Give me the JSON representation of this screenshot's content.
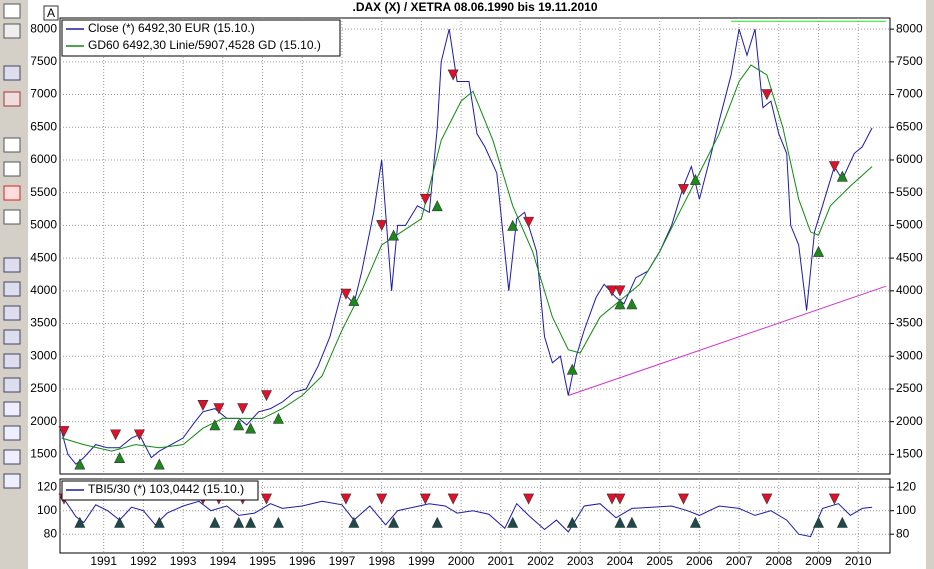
{
  "ui": {
    "corner_label": "A"
  },
  "chart_data": [
    {
      "type": "line",
      "title": ".DAX (X) / XETRA 08.06.1990 bis 19.11.2010",
      "xlim": [
        1990.4,
        2011.3
      ],
      "ylim": [
        1200,
        8170
      ],
      "yticks": [
        1500,
        2000,
        2500,
        3000,
        3500,
        4000,
        4500,
        5000,
        5500,
        6000,
        6500,
        7000,
        7500,
        8000
      ],
      "grid": true,
      "series": [
        {
          "name": "Close (*) 6492,30 EUR (15.10.)",
          "color": "#1c1ca8",
          "x": [
            1990.44,
            1990.6,
            1990.8,
            1991.0,
            1991.3,
            1991.6,
            1991.9,
            1992.2,
            1992.4,
            1992.7,
            1992.9,
            1993.2,
            1993.5,
            1993.8,
            1994.0,
            1994.3,
            1994.6,
            1994.9,
            1995.1,
            1995.4,
            1995.7,
            1996.0,
            1996.3,
            1996.6,
            1996.9,
            1997.2,
            1997.5,
            1997.8,
            1998.0,
            1998.3,
            1998.5,
            1998.6,
            1998.75,
            1998.9,
            1999.1,
            1999.4,
            1999.7,
            1999.9,
            2000.0,
            2000.2,
            2000.4,
            2000.7,
            2000.9,
            2001.1,
            2001.4,
            2001.7,
            2001.9,
            2002.1,
            2002.4,
            2002.6,
            2002.8,
            2003.0,
            2003.2,
            2003.4,
            2003.6,
            2003.9,
            2004.1,
            2004.4,
            2004.6,
            2004.9,
            2005.2,
            2005.5,
            2005.8,
            2006.1,
            2006.3,
            2006.5,
            2006.8,
            2007.0,
            2007.3,
            2007.5,
            2007.7,
            2007.9,
            2008.1,
            2008.3,
            2008.5,
            2008.7,
            2008.8,
            2009.0,
            2009.2,
            2009.4,
            2009.6,
            2009.9,
            2010.1,
            2010.4,
            2010.6,
            2010.85
          ],
          "values": [
            1850,
            1500,
            1350,
            1450,
            1650,
            1600,
            1600,
            1750,
            1800,
            1450,
            1550,
            1650,
            1750,
            2000,
            2150,
            2200,
            2050,
            2050,
            1950,
            2150,
            2200,
            2300,
            2450,
            2500,
            2850,
            3300,
            4000,
            3800,
            4300,
            5200,
            6000,
            5200,
            4000,
            5000,
            5000,
            5300,
            5200,
            6500,
            7500,
            8000,
            7200,
            7200,
            6400,
            6200,
            5800,
            4000,
            5100,
            5200,
            4600,
            3300,
            2900,
            3000,
            2400,
            3000,
            3400,
            3900,
            4100,
            3900,
            3800,
            4200,
            4300,
            4600,
            5000,
            5600,
            5900,
            5400,
            6100,
            6600,
            7300,
            8000,
            7600,
            8000,
            6800,
            6900,
            6400,
            6100,
            5000,
            4700,
            3700,
            4900,
            5300,
            5900,
            5700,
            6100,
            6200,
            6490
          ]
        },
        {
          "name": "GD60 6492,30 Linie/5907,4528 GD (15.10.)",
          "color": "#108a10",
          "x": [
            1990.44,
            1991.0,
            1991.7,
            1992.3,
            1992.9,
            1993.5,
            1994.0,
            1994.5,
            1995.0,
            1995.5,
            1996.0,
            1996.5,
            1997.0,
            1997.5,
            1998.0,
            1998.5,
            1999.0,
            1999.5,
            2000.0,
            2000.5,
            2000.8,
            2001.3,
            2001.8,
            2002.3,
            2002.8,
            2003.2,
            2003.5,
            2004.0,
            2004.5,
            2005.0,
            2005.5,
            2006.0,
            2006.5,
            2007.0,
            2007.5,
            2007.8,
            2008.2,
            2008.6,
            2009.0,
            2009.3,
            2009.5,
            2009.8,
            2010.3,
            2010.85
          ],
          "values": [
            1750,
            1650,
            1550,
            1650,
            1600,
            1650,
            1900,
            2050,
            2050,
            2050,
            2200,
            2400,
            2700,
            3400,
            4000,
            4700,
            4900,
            5100,
            6300,
            6900,
            7050,
            6300,
            5300,
            4600,
            3600,
            3100,
            3050,
            3600,
            3850,
            4100,
            4600,
            5200,
            5800,
            6400,
            7200,
            7450,
            7300,
            6500,
            5400,
            4900,
            4850,
            5300,
            5600,
            5900
          ]
        },
        {
          "color": "#22e022",
          "x": [
            2007.3,
            2011.2
          ],
          "values": [
            8120,
            8120
          ]
        },
        {
          "color": "#cc33cc",
          "x": [
            2003.2,
            2011.2
          ],
          "values": [
            2400,
            4070
          ]
        },
        {
          "color": "#e0102a",
          "marker": "triangle-down",
          "x": [
            1990.5,
            1991.8,
            1992.4,
            1994.0,
            1994.4,
            1995.0,
            1995.6,
            1997.6,
            1998.5,
            1999.6,
            2000.3,
            2002.2,
            2004.3,
            2004.5,
            2006.1,
            2008.2,
            2009.9
          ],
          "values": [
            1850,
            1800,
            1800,
            2250,
            2200,
            2200,
            2400,
            3950,
            5000,
            5400,
            7300,
            5050,
            4000,
            4000,
            5550,
            7000,
            5900
          ]
        },
        {
          "color": "#1a8a1a",
          "marker": "triangle-up",
          "x": [
            1990.9,
            1991.9,
            1992.9,
            1994.3,
            1994.9,
            1995.2,
            1995.9,
            1997.8,
            1998.8,
            1999.9,
            2001.8,
            2003.3,
            2004.5,
            2004.8,
            2006.4,
            2009.5,
            2010.1
          ],
          "values": [
            1350,
            1450,
            1350,
            1950,
            1950,
            1900,
            2050,
            3850,
            4850,
            5300,
            5000,
            2800,
            3800,
            3800,
            5700,
            4600,
            5750
          ]
        }
      ]
    },
    {
      "type": "line",
      "xlim": [
        1990.4,
        2011.3
      ],
      "ylim": [
        64,
        127
      ],
      "yticks": [
        80,
        100,
        120
      ],
      "grid": true,
      "xticks": [
        {
          "value": 1991.5,
          "label": "1991"
        },
        {
          "value": 1992.5,
          "label": "1992"
        },
        {
          "value": 1993.5,
          "label": "1993"
        },
        {
          "value": 1994.5,
          "label": "1994"
        },
        {
          "value": 1995.5,
          "label": "1995"
        },
        {
          "value": 1996.5,
          "label": "1996"
        },
        {
          "value": 1997.5,
          "label": "1997"
        },
        {
          "value": 1998.5,
          "label": "1998"
        },
        {
          "value": 1999.5,
          "label": "1999"
        },
        {
          "value": 2000.5,
          "label": "2000"
        },
        {
          "value": 2001.5,
          "label": "2001"
        },
        {
          "value": 2002.5,
          "label": "2002"
        },
        {
          "value": 2003.5,
          "label": "2003"
        },
        {
          "value": 2004.5,
          "label": "2004"
        },
        {
          "value": 2005.5,
          "label": "2005"
        },
        {
          "value": 2006.5,
          "label": "2006"
        },
        {
          "value": 2007.5,
          "label": "2007"
        },
        {
          "value": 2008.5,
          "label": "2008"
        },
        {
          "value": 2009.5,
          "label": "2009"
        },
        {
          "value": 2010.5,
          "label": "2010"
        }
      ],
      "series": [
        {
          "name": "TBI5/30 (*) 103,0442 (15.10.)",
          "color": "#1c1ca8",
          "x": [
            1990.5,
            1990.8,
            1991.0,
            1991.3,
            1991.6,
            1991.9,
            1992.2,
            1992.5,
            1992.8,
            1993.1,
            1993.5,
            1993.9,
            1994.2,
            1994.6,
            1994.9,
            1995.3,
            1995.7,
            1996.0,
            1996.5,
            1997.0,
            1997.5,
            1997.8,
            1998.2,
            1998.6,
            1998.9,
            1999.3,
            1999.7,
            2000.1,
            2000.4,
            2000.8,
            2001.2,
            2001.6,
            2001.9,
            2002.2,
            2002.6,
            2002.9,
            2003.2,
            2003.6,
            2004.0,
            2004.4,
            2004.8,
            2005.3,
            2005.8,
            2006.2,
            2006.5,
            2007.0,
            2007.5,
            2007.9,
            2008.3,
            2008.7,
            2009.0,
            2009.3,
            2009.6,
            2010.0,
            2010.3,
            2010.6,
            2010.85
          ],
          "values": [
            110,
            95,
            90,
            105,
            100,
            92,
            103,
            100,
            88,
            98,
            104,
            108,
            100,
            104,
            96,
            98,
            106,
            102,
            104,
            108,
            105,
            92,
            104,
            88,
            100,
            103,
            106,
            104,
            98,
            100,
            97,
            85,
            106,
            96,
            84,
            92,
            82,
            104,
            106,
            94,
            102,
            103,
            104,
            100,
            96,
            104,
            102,
            96,
            100,
            92,
            80,
            78,
            102,
            106,
            96,
            102,
            103
          ]
        },
        {
          "color": "#e0102a",
          "marker": "triangle-down",
          "x": [
            1990.5,
            1994.0,
            1994.4,
            1995.0,
            1995.6,
            1997.6,
            1998.5,
            1999.6,
            2000.3,
            2002.2,
            2004.3,
            2004.5,
            2006.1,
            2008.2,
            2009.9
          ],
          "values": [
            110,
            110,
            110,
            110,
            110,
            110,
            110,
            110,
            110,
            110,
            110,
            110,
            110,
            110,
            110
          ]
        },
        {
          "color": "#1a4a4a",
          "marker": "triangle-up",
          "x": [
            1990.9,
            1991.9,
            1992.9,
            1994.3,
            1994.9,
            1995.2,
            1995.9,
            1997.8,
            1998.8,
            1999.9,
            2001.8,
            2003.3,
            2004.5,
            2004.8,
            2006.4,
            2009.5,
            2010.1
          ],
          "values": [
            90,
            90,
            90,
            90,
            90,
            90,
            90,
            90,
            90,
            90,
            90,
            90,
            90,
            90,
            90,
            90,
            90
          ]
        }
      ]
    }
  ]
}
